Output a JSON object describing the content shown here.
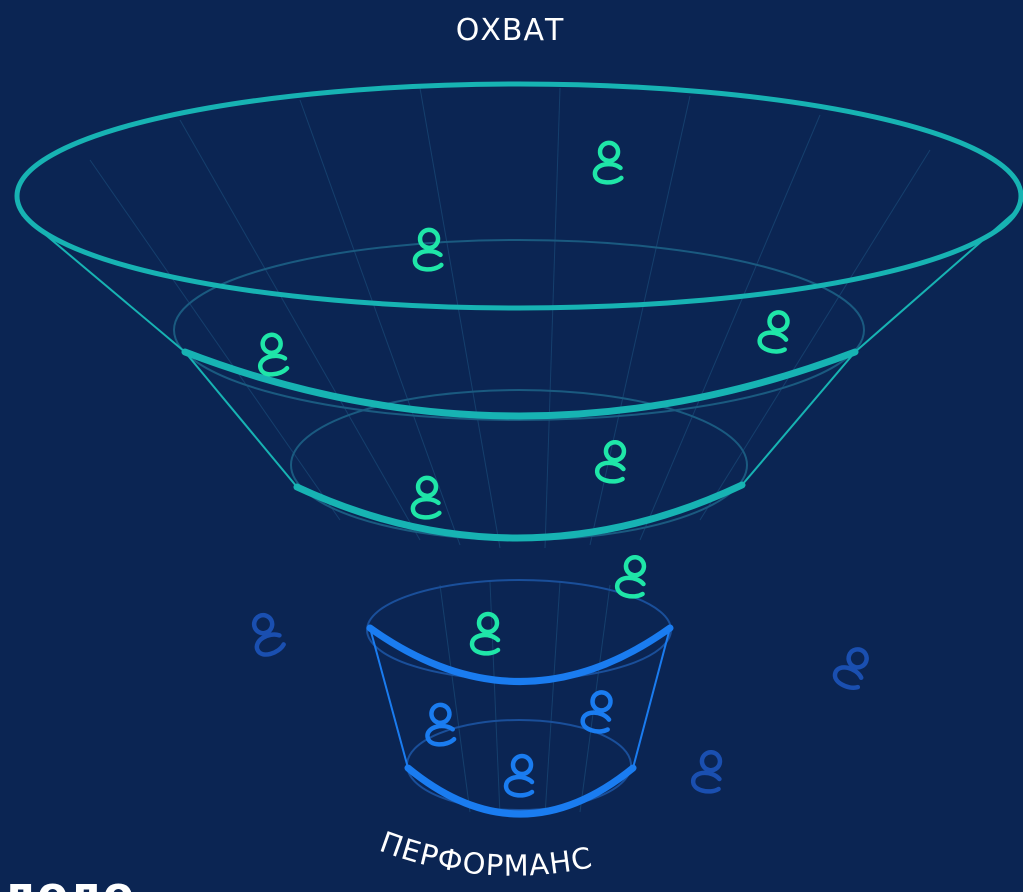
{
  "header": {
    "title": "ОХВАТ"
  },
  "footer": {
    "label": "ПЕРФОРМАНС",
    "logo": "додо"
  }
}
